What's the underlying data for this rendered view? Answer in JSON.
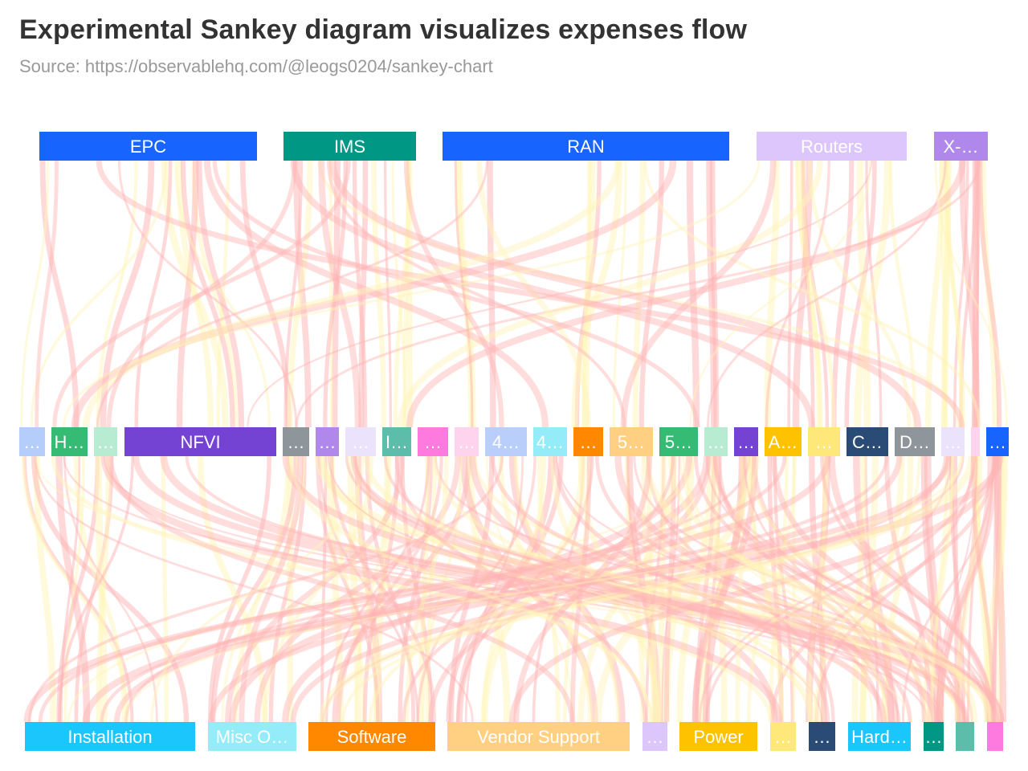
{
  "title": "Experimental Sankey diagram visualizes expenses flow",
  "subtitle": "Source: https://observablehq.com/@leogs0204/sankey-chart",
  "colors": {
    "link_a": "#ffb3b3",
    "link_b": "#fff5b8"
  },
  "levels": [
    {
      "name": "top",
      "nodes": [
        {
          "label": "EPC",
          "color": "#1764ff"
        },
        {
          "label": "IMS",
          "color": "#009784"
        },
        {
          "label": "RAN",
          "color": "#1764ff"
        },
        {
          "label": "Routers",
          "color": "#dcc6fb"
        },
        {
          "label": "X-…",
          "color": "#b087ea"
        }
      ]
    },
    {
      "name": "middle",
      "nodes": [
        {
          "label": "…",
          "color": "#b4cdfb"
        },
        {
          "label": "H…",
          "color": "#36bb74"
        },
        {
          "label": "…",
          "color": "#b8ecd2"
        },
        {
          "label": "NFVI",
          "color": "#7543d4"
        },
        {
          "label": "…",
          "color": "#8e969c"
        },
        {
          "label": "…",
          "color": "#b087ea"
        },
        {
          "label": "…",
          "color": "#ebe2fc"
        },
        {
          "label": "I…",
          "color": "#5cbdab"
        },
        {
          "label": "…",
          "color": "#ff7adf"
        },
        {
          "label": "…",
          "color": "#fdd3ee"
        },
        {
          "label": "4…",
          "color": "#b9cefb"
        },
        {
          "label": "4…",
          "color": "#94ecf9"
        },
        {
          "label": "…",
          "color": "#ff8800"
        },
        {
          "label": "5…",
          "color": "#ffcf82"
        },
        {
          "label": "5…",
          "color": "#36bb74"
        },
        {
          "label": "…",
          "color": "#b8ecd2"
        },
        {
          "label": "…",
          "color": "#7543d4"
        },
        {
          "label": "A…",
          "color": "#ffc200"
        },
        {
          "label": "…",
          "color": "#ffe87a"
        },
        {
          "label": "C…",
          "color": "#2a4b75"
        },
        {
          "label": "D…",
          "color": "#8e969c"
        },
        {
          "label": "…",
          "color": "#ebe2fc"
        },
        {
          "label": "",
          "color": "#fdd3ee"
        },
        {
          "label": "…",
          "color": "#1764ff"
        }
      ]
    },
    {
      "name": "bottom",
      "nodes": [
        {
          "label": "Installation",
          "color": "#1ac6fb"
        },
        {
          "label": "Misc O…",
          "color": "#94ecf9"
        },
        {
          "label": "Software",
          "color": "#ff8800"
        },
        {
          "label": "Vendor Support",
          "color": "#ffcf82"
        },
        {
          "label": "…",
          "color": "#dcc6fb"
        },
        {
          "label": "Power",
          "color": "#ffc200"
        },
        {
          "label": "…",
          "color": "#ffe87a"
        },
        {
          "label": "…",
          "color": "#2a4b75"
        },
        {
          "label": "Hard…",
          "color": "#1ac6fb"
        },
        {
          "label": "…",
          "color": "#009784"
        },
        {
          "label": "",
          "color": "#5cbdab"
        },
        {
          "label": "",
          "color": "#ff7adf"
        }
      ]
    }
  ]
}
